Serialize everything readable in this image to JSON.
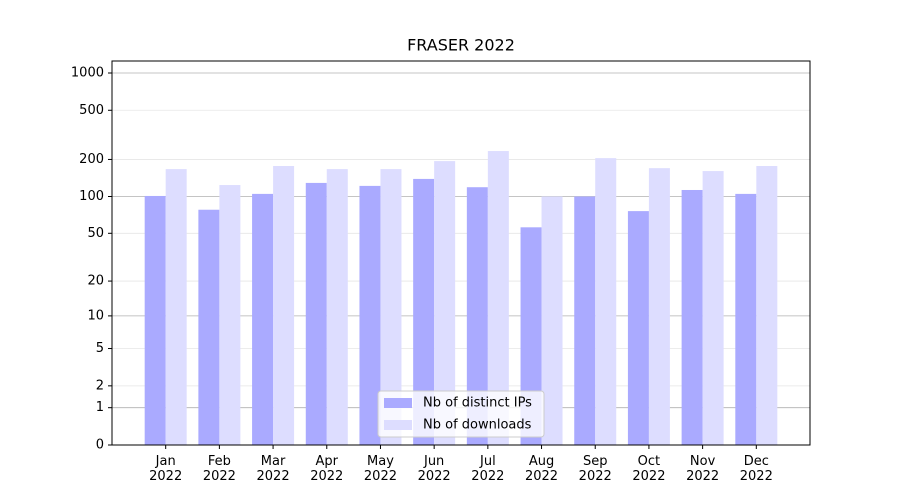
{
  "chart_data": {
    "type": "bar",
    "title": "FRASER 2022",
    "categories": [
      "Jan\n2022",
      "Feb\n2022",
      "Mar\n2022",
      "Apr\n2022",
      "May\n2022",
      "Jun\n2022",
      "Jul\n2022",
      "Aug\n2022",
      "Sep\n2022",
      "Oct\n2022",
      "Nov\n2022",
      "Dec\n2022"
    ],
    "series": [
      {
        "name": "Nb of distinct IPs",
        "color": "#aaaaff",
        "values": [
          101,
          78,
          105,
          129,
          122,
          139,
          119,
          56,
          100,
          76,
          113,
          105
        ]
      },
      {
        "name": "Nb of downloads",
        "color": "#ddddff",
        "values": [
          167,
          124,
          177,
          167,
          167,
          194,
          234,
          100,
          205,
          170,
          161,
          177
        ]
      }
    ],
    "yscale": "log1p",
    "ylim": [
      0,
      1250
    ],
    "yticks": [
      0,
      1,
      2,
      5,
      10,
      20,
      50,
      100,
      200,
      500,
      1000
    ],
    "grid": true,
    "legend_position": "lower center"
  }
}
